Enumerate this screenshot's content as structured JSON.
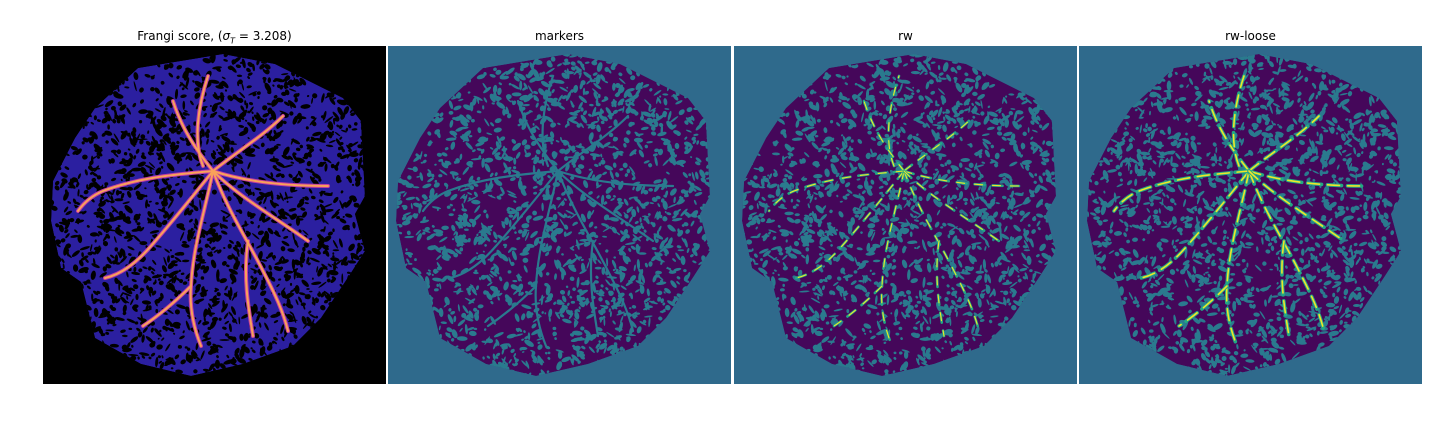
{
  "panels": [
    {
      "title_prefix": "Frangi score, (",
      "sigma_symbol": "σ",
      "sigma_sub": "T",
      "title_suffix": " = 3.208)",
      "colormap": "magma"
    },
    {
      "title": "markers",
      "colormap": "viridis"
    },
    {
      "title": "rw",
      "colormap": "viridis"
    },
    {
      "title": "rw-loose",
      "colormap": "viridis"
    }
  ],
  "colors": {
    "frangi_background": "#000000",
    "frangi_texture": "#2b1fa0",
    "frangi_vessel": "#f9a25a",
    "frangi_glow": "#c23fa0",
    "seg_background": "#2f6a8c",
    "seg_tissue": "#45075a",
    "seg_channel": "#2a7a8e",
    "seg_vessel_fill": "#22a884",
    "seg_vessel_core": "#f0e52a"
  }
}
